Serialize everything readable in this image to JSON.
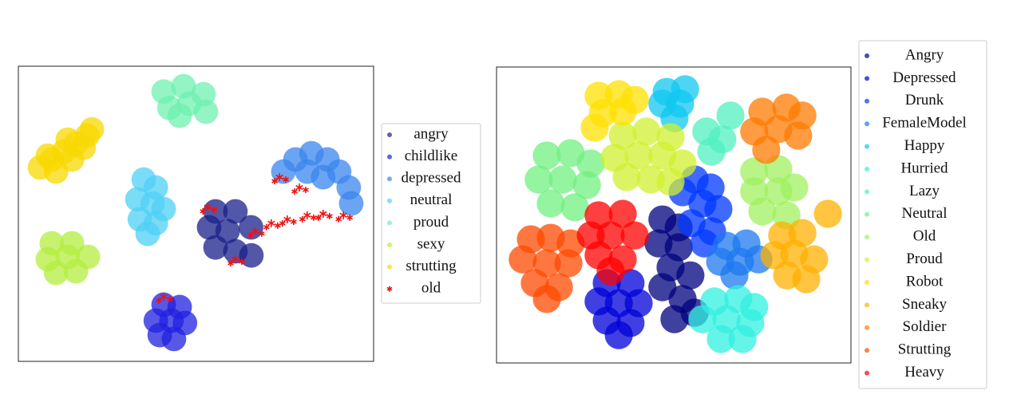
{
  "chart_data": [
    {
      "type": "scatter",
      "xlim": [
        0,
        100
      ],
      "ylim": [
        0,
        100
      ],
      "legend": "right",
      "series": [
        {
          "name": "angry",
          "color": "#1a1f8a",
          "x": [
            55.5,
            61.1,
            53.7,
            58.9,
            65.5,
            55.5,
            61.1,
            65.6
          ],
          "y": [
            50.8,
            50.8,
            45.4,
            44.1,
            45.4,
            38.6,
            37.3,
            35.9
          ]
        },
        {
          "name": "childlike",
          "color": "#2020e0",
          "x": [
            40.9,
            45.4,
            38.7,
            43.1,
            46.9,
            39.8,
            43.8
          ],
          "y": [
            19.2,
            18.4,
            13.8,
            13.8,
            13.0,
            8.9,
            7.6
          ]
        },
        {
          "name": "depressed",
          "color": "#3a86ee",
          "x": [
            74.6,
            78.0,
            82.5,
            87.0,
            90.3,
            93.0,
            93.7,
            81.3,
            85.8
          ],
          "y": [
            64.3,
            68.4,
            70.5,
            68.4,
            64.3,
            58.9,
            53.5,
            64.3,
            62.4
          ]
        },
        {
          "name": "neutral",
          "color": "#4fd0f5",
          "x": [
            35.3,
            38.7,
            33.5,
            37.8,
            34.2,
            38.7,
            36.4,
            40.9
          ],
          "y": [
            61.6,
            58.9,
            54.9,
            53.5,
            48.1,
            46.8,
            43.2,
            51.6
          ]
        },
        {
          "name": "proud",
          "color": "#6ff0b0",
          "x": [
            40.9,
            46.5,
            52.1,
            42.5,
            48.1,
            52.8,
            45.4
          ],
          "y": [
            91.4,
            93.2,
            90.5,
            85.9,
            87.3,
            84.6,
            83.2
          ]
        },
        {
          "name": "sexy",
          "color": "#b4ee40",
          "x": [
            9.4,
            15.1,
            8.3,
            13.9,
            19.6,
            10.6,
            16.2
          ],
          "y": [
            40.0,
            40.0,
            34.6,
            35.4,
            35.4,
            30.0,
            30.5
          ]
        },
        {
          "name": "strutting",
          "color": "#f8d800",
          "x": [
            6.1,
            9.4,
            12.8,
            16.2,
            19.4,
            10.6,
            15.1,
            18.4,
            8.3,
            13.9,
            20.7
          ],
          "y": [
            65.7,
            68.4,
            71.1,
            73.8,
            76.5,
            64.3,
            68.4,
            72.4,
            69.7,
            75.1,
            78.6
          ]
        },
        {
          "name": "old",
          "color": "#ee1111",
          "marker": "star",
          "x": [
            73.5,
            79.1,
            71.2,
            75.7,
            81.3,
            85.8,
            91.5,
            66.7,
            61.1,
            53.3,
            40.9
          ],
          "y": [
            62.4,
            58.9,
            46.8,
            48.1,
            49.5,
            50.0,
            49.5,
            44.1,
            34.6,
            52.2,
            21.9
          ]
        }
      ]
    },
    {
      "type": "scatter",
      "xlim": [
        0,
        100
      ],
      "ylim": [
        0,
        100
      ],
      "legend": "right",
      "series": [
        {
          "name": "Angry",
          "color": "#00007f",
          "x": [
            46.8,
            51.4,
            45.7,
            51.4,
            49.1,
            54.7,
            46.8,
            52.5,
            50.2,
            55.9
          ],
          "y": [
            48.5,
            45.8,
            40.4,
            39.1,
            32.3,
            29.6,
            25.6,
            21.6,
            14.8,
            17.0
          ]
        },
        {
          "name": "Depressed",
          "color": "#0000d8",
          "x": [
            31.1,
            37.8,
            28.8,
            34.5,
            40.1,
            31.1,
            37.8,
            34.5
          ],
          "y": [
            27.0,
            27.0,
            20.8,
            20.2,
            20.2,
            14.3,
            13.5,
            9.4
          ]
        },
        {
          "name": "Drunk",
          "color": "#0038ff",
          "x": [
            55.9,
            60.4,
            52.5,
            58.1,
            62.6,
            55.0,
            60.8,
            58.6
          ],
          "y": [
            62.0,
            59.3,
            57.7,
            53.9,
            52.0,
            47.2,
            44.5,
            40.4
          ]
        },
        {
          "name": "FemaleModel",
          "color": "#1e78f0",
          "x": [
            64.9,
            70.5,
            63.1,
            68.7,
            73.9,
            67.1
          ],
          "y": [
            39.6,
            40.4,
            34.2,
            34.2,
            35.0,
            29.6
          ]
        },
        {
          "name": "Happy",
          "color": "#10c8f0",
          "x": [
            48.0,
            53.2,
            46.8,
            51.8,
            50.2
          ],
          "y": [
            91.6,
            92.5,
            87.6,
            87.6,
            82.7
          ]
        },
        {
          "name": "Hurried",
          "color": "#30f0e0",
          "x": [
            61.5,
            68.2,
            72.7,
            58.1,
            64.9,
            71.6,
            63.3,
            69.4
          ],
          "y": [
            20.8,
            21.6,
            18.9,
            14.8,
            14.8,
            13.5,
            8.1,
            8.1
          ]
        },
        {
          "name": "Lazy",
          "color": "#50f0c0",
          "x": [
            59.2,
            63.7,
            60.6,
            66.0
          ],
          "y": [
            78.2,
            75.5,
            71.4,
            83.6
          ]
        },
        {
          "name": "Neutral",
          "color": "#70f080",
          "x": [
            14.2,
            20.9,
            26.6,
            11.9,
            18.7,
            25.5,
            15.3,
            22.1
          ],
          "y": [
            70.1,
            70.9,
            67.4,
            62.0,
            62.0,
            60.1,
            53.9,
            52.6
          ]
        },
        {
          "name": "Old",
          "color": "#a0f060",
          "x": [
            72.7,
            79.5,
            72.7,
            79.5,
            84.0,
            75.0,
            81.8
          ],
          "y": [
            64.7,
            65.5,
            58.0,
            58.0,
            59.3,
            51.2,
            49.9
          ]
        },
        {
          "name": "Proud",
          "color": "#d0f030",
          "x": [
            35.6,
            42.3,
            49.1,
            33.3,
            40.1,
            46.8,
            52.5,
            36.7,
            43.5,
            49.1
          ],
          "y": [
            76.8,
            78.2,
            76.3,
            69.3,
            70.1,
            70.1,
            67.4,
            62.8,
            62.0,
            61.2
          ]
        },
        {
          "name": "Robot",
          "color": "#ffe000",
          "x": [
            28.8,
            34.5,
            39.0,
            30.0,
            35.6,
            27.7
          ],
          "y": [
            90.3,
            90.8,
            88.9,
            84.4,
            84.9,
            79.5
          ]
        },
        {
          "name": "Sneaky",
          "color": "#ffb000",
          "x": [
            80.6,
            86.3,
            78.4,
            84.0,
            89.6,
            82.0,
            87.4,
            93.5
          ],
          "y": [
            43.1,
            43.9,
            36.4,
            36.9,
            35.0,
            29.6,
            28.3,
            50.4
          ]
        },
        {
          "name": "Soldier",
          "color": "#ff7a00",
          "x": [
            75.0,
            81.8,
            86.3,
            72.7,
            79.5,
            85.1,
            76.1
          ],
          "y": [
            84.9,
            86.3,
            83.6,
            78.2,
            79.0,
            76.8,
            72.0
          ]
        },
        {
          "name": "Strutting",
          "color": "#ff4a00",
          "x": [
            9.7,
            15.3,
            20.9,
            7.4,
            14.2,
            20.3,
            10.8,
            17.6,
            14.2
          ],
          "y": [
            41.8,
            42.3,
            40.4,
            35.0,
            33.7,
            33.7,
            27.0,
            25.6,
            21.6
          ]
        },
        {
          "name": "Heavy",
          "color": "#ff0000",
          "x": [
            28.8,
            35.6,
            26.6,
            32.2,
            39.0,
            28.8,
            35.6,
            32.2
          ],
          "y": [
            49.9,
            50.4,
            43.1,
            43.1,
            43.1,
            36.4,
            35.0,
            31.0
          ]
        }
      ]
    }
  ]
}
